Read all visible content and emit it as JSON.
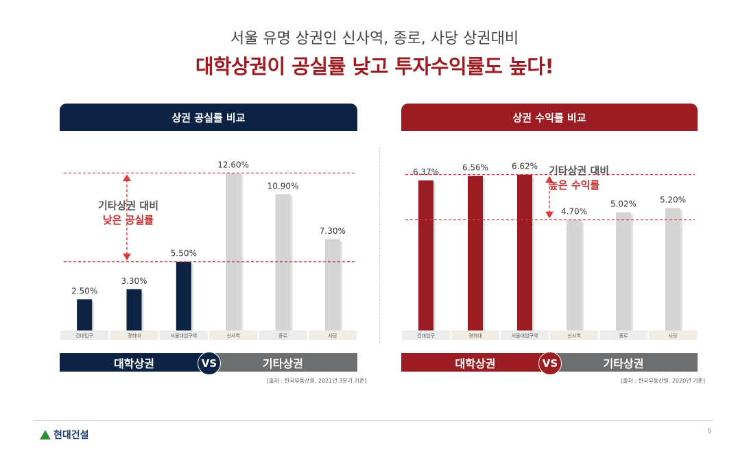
{
  "header": {
    "subtitle": "서울 유명 상권인 신사역, 종로, 사당 상권대비",
    "headline": "대학상권이 공실률 낮고 투자수익률도 높다!"
  },
  "left_panel": {
    "title": "상권 공실률 비교",
    "annotation_line1": "기타상권 대비",
    "annotation_line2": "낮은 공실률",
    "vs": {
      "left": "대학상권",
      "badge": "VS",
      "right": "기타상권"
    },
    "source": "[출처 : 한국부동산원, 2021년 3분기 기준]"
  },
  "right_panel": {
    "title": "상권 수익률 비교",
    "annotation_line1": "기타상권 대비",
    "annotation_line2": "높은 수익률",
    "vs": {
      "left": "대학상권",
      "badge": "VS",
      "right": "기타상권"
    },
    "source": "[출처 : 한국부동산원, 2020년 기준]"
  },
  "colors": {
    "navy": "#0c2344",
    "crimson": "#9b1c22",
    "gray_bar": "#d4d4d4",
    "gray_vs": "#6d6e70",
    "dash_red": "#d83a3a"
  },
  "chart_data": [
    {
      "type": "bar",
      "title": "상권 공실률 비교",
      "categories": [
        "건대입구",
        "경희대",
        "서울대입구역",
        "신사역",
        "종로",
        "사당"
      ],
      "values": [
        2.5,
        3.3,
        5.5,
        12.6,
        10.9,
        7.3
      ],
      "value_labels": [
        "2.50%",
        "3.30%",
        "5.50%",
        "12.60%",
        "10.90%",
        "7.30%"
      ],
      "groups": [
        "대학상권",
        "대학상권",
        "대학상권",
        "기타상권",
        "기타상권",
        "기타상권"
      ],
      "ylim": [
        0,
        13
      ]
    },
    {
      "type": "bar",
      "title": "상권 수익률 비교",
      "categories": [
        "건대입구",
        "경희대",
        "서울대입구역",
        "신사역",
        "종로",
        "사당"
      ],
      "values": [
        6.37,
        6.56,
        6.62,
        4.7,
        5.02,
        5.2
      ],
      "value_labels": [
        "6.37%",
        "6.56%",
        "6.62%",
        "4.70%",
        "5.02%",
        "5.20%"
      ],
      "groups": [
        "대학상권",
        "대학상권",
        "대학상권",
        "기타상권",
        "기타상권",
        "기타상권"
      ],
      "ylim": [
        0,
        6.9
      ]
    }
  ],
  "footer": {
    "logo": "현대건설",
    "page": "5"
  }
}
